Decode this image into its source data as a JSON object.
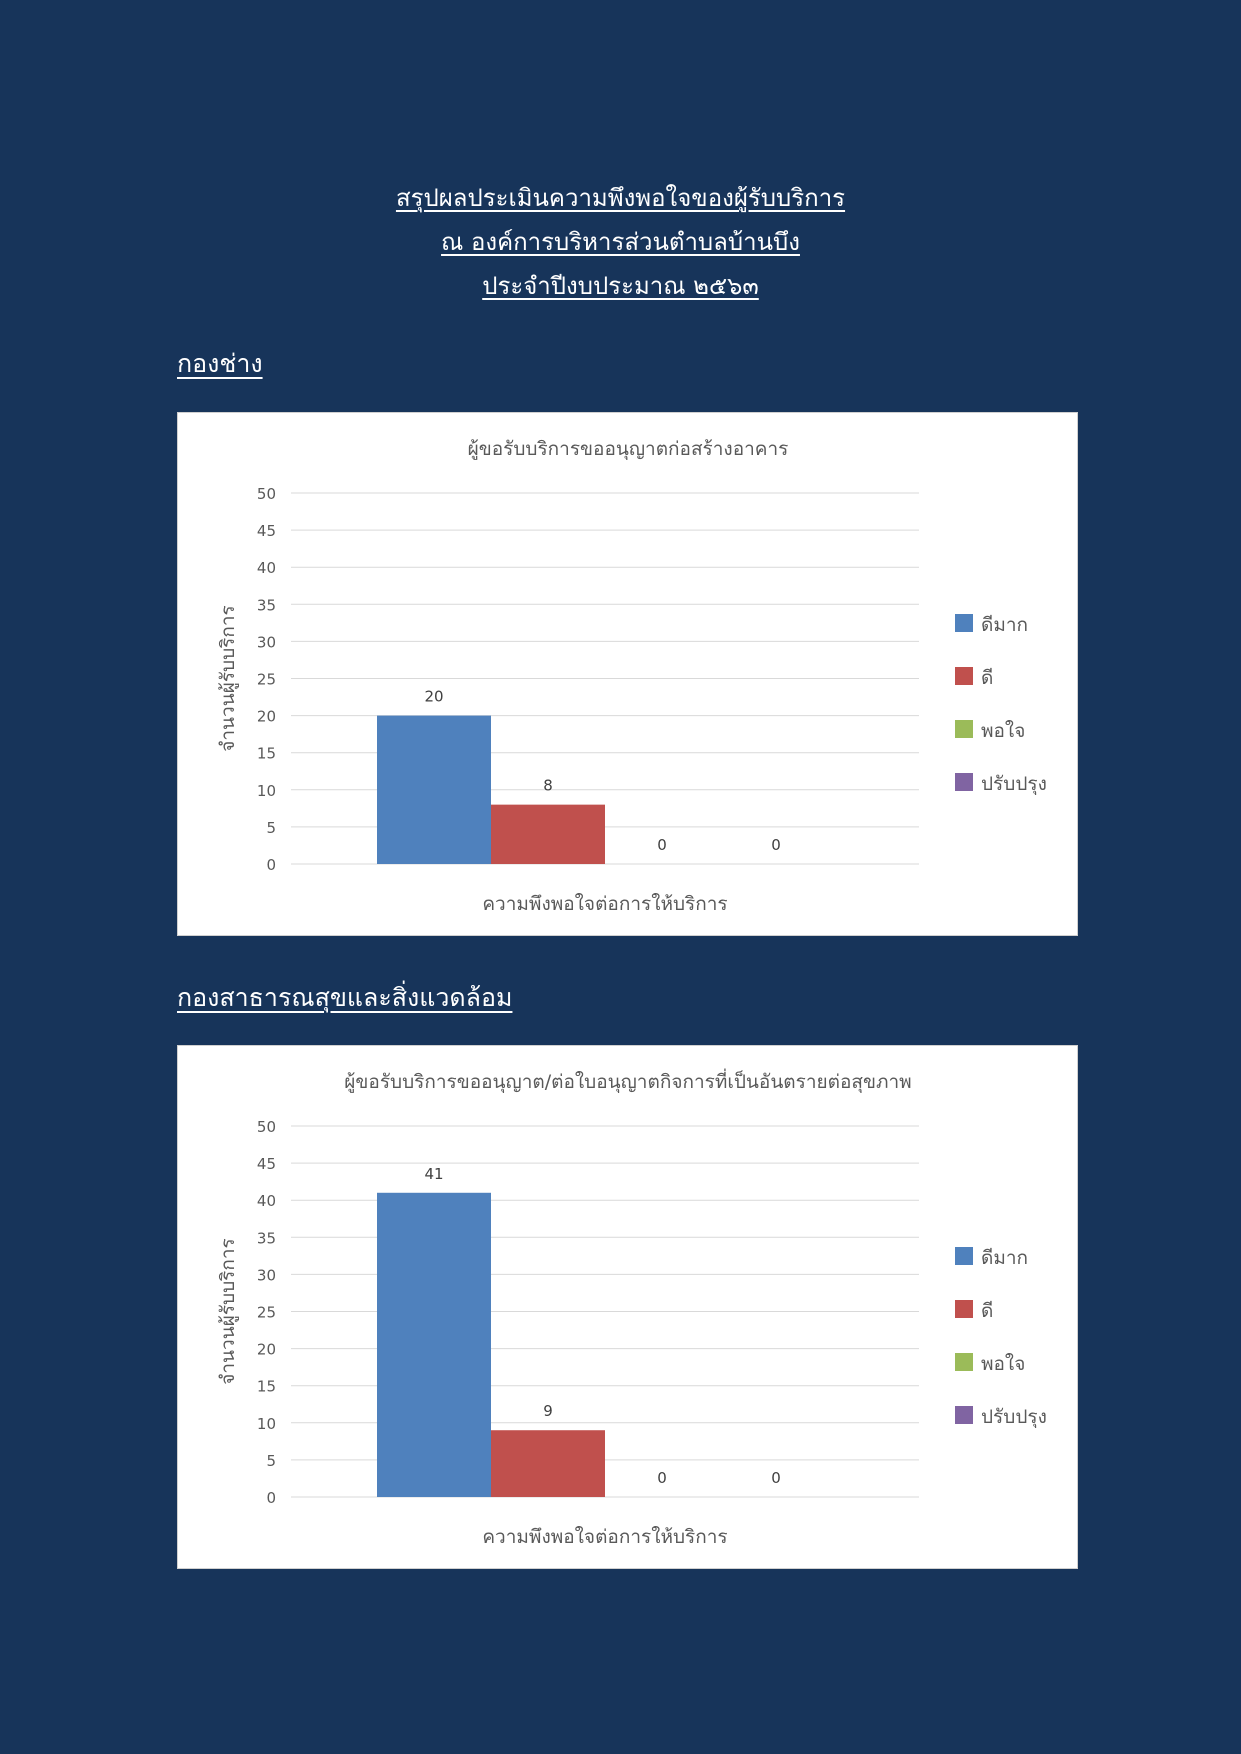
{
  "header": {
    "title_line1": "สรุปผลประเมินความพึงพอใจของผู้รับบริการ",
    "title_line2": "ณ องค์การบริหารส่วนตำบลบ้านบึง",
    "title_line3": "ประจำปีงบประมาณ ๒๕๖๓"
  },
  "sections": [
    {
      "heading": "กองช่าง"
    },
    {
      "heading": "กองสาธารณสุขและสิ่งแวดล้อม"
    }
  ],
  "chart_data": [
    {
      "type": "bar",
      "title": "ผู้ขอรับบริการขออนุญาตก่อสร้างอาคาร",
      "xlabel": "ความพึงพอใจต่อการให้บริการ",
      "ylabel": "จำนวนผู้รับบริการ",
      "ylim": [
        0,
        50
      ],
      "yticks": [
        0,
        5,
        10,
        15,
        20,
        25,
        30,
        35,
        40,
        45,
        50
      ],
      "grid": true,
      "legend_position": "right",
      "series": [
        {
          "name": "ดีมาก",
          "values": [
            20
          ],
          "color": "#4f81bd"
        },
        {
          "name": "ดี",
          "values": [
            8
          ],
          "color": "#c0504d"
        },
        {
          "name": "พอใจ",
          "values": [
            0
          ],
          "color": "#9bbb59"
        },
        {
          "name": "ปรับปรุง",
          "values": [
            0
          ],
          "color": "#8064a2"
        }
      ]
    },
    {
      "type": "bar",
      "title": "ผู้ขอรับบริการขออนุญาต/ต่อใบอนุญาตกิจการที่เป็นอันตรายต่อสุขภาพ",
      "xlabel": "ความพึงพอใจต่อการให้บริการ",
      "ylabel": "จำนวนผู้รับบริการ",
      "ylim": [
        0,
        50
      ],
      "yticks": [
        0,
        5,
        10,
        15,
        20,
        25,
        30,
        35,
        40,
        45,
        50
      ],
      "grid": true,
      "legend_position": "right",
      "series": [
        {
          "name": "ดีมาก",
          "values": [
            41
          ],
          "color": "#4f81bd"
        },
        {
          "name": "ดี",
          "values": [
            9
          ],
          "color": "#c0504d"
        },
        {
          "name": "พอใจ",
          "values": [
            0
          ],
          "color": "#9bbb59"
        },
        {
          "name": "ปรับปรุง",
          "values": [
            0
          ],
          "color": "#8064a2"
        }
      ]
    }
  ]
}
